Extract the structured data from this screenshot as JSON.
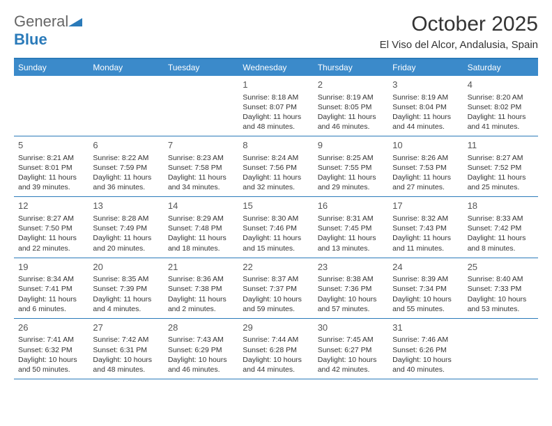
{
  "logo": {
    "text_gray": "General",
    "text_blue": "Blue"
  },
  "header": {
    "month_title": "October 2025",
    "location": "El Viso del Alcor, Andalusia, Spain"
  },
  "colors": {
    "header_bar": "#3b8aca",
    "border": "#2a7ab9",
    "text": "#333333"
  },
  "weekdays": [
    "Sunday",
    "Monday",
    "Tuesday",
    "Wednesday",
    "Thursday",
    "Friday",
    "Saturday"
  ],
  "weeks": [
    [
      {
        "num": "",
        "sunrise": "",
        "sunset": "",
        "daylight": ""
      },
      {
        "num": "",
        "sunrise": "",
        "sunset": "",
        "daylight": ""
      },
      {
        "num": "",
        "sunrise": "",
        "sunset": "",
        "daylight": ""
      },
      {
        "num": "1",
        "sunrise": "Sunrise: 8:18 AM",
        "sunset": "Sunset: 8:07 PM",
        "daylight": "Daylight: 11 hours and 48 minutes."
      },
      {
        "num": "2",
        "sunrise": "Sunrise: 8:19 AM",
        "sunset": "Sunset: 8:05 PM",
        "daylight": "Daylight: 11 hours and 46 minutes."
      },
      {
        "num": "3",
        "sunrise": "Sunrise: 8:19 AM",
        "sunset": "Sunset: 8:04 PM",
        "daylight": "Daylight: 11 hours and 44 minutes."
      },
      {
        "num": "4",
        "sunrise": "Sunrise: 8:20 AM",
        "sunset": "Sunset: 8:02 PM",
        "daylight": "Daylight: 11 hours and 41 minutes."
      }
    ],
    [
      {
        "num": "5",
        "sunrise": "Sunrise: 8:21 AM",
        "sunset": "Sunset: 8:01 PM",
        "daylight": "Daylight: 11 hours and 39 minutes."
      },
      {
        "num": "6",
        "sunrise": "Sunrise: 8:22 AM",
        "sunset": "Sunset: 7:59 PM",
        "daylight": "Daylight: 11 hours and 36 minutes."
      },
      {
        "num": "7",
        "sunrise": "Sunrise: 8:23 AM",
        "sunset": "Sunset: 7:58 PM",
        "daylight": "Daylight: 11 hours and 34 minutes."
      },
      {
        "num": "8",
        "sunrise": "Sunrise: 8:24 AM",
        "sunset": "Sunset: 7:56 PM",
        "daylight": "Daylight: 11 hours and 32 minutes."
      },
      {
        "num": "9",
        "sunrise": "Sunrise: 8:25 AM",
        "sunset": "Sunset: 7:55 PM",
        "daylight": "Daylight: 11 hours and 29 minutes."
      },
      {
        "num": "10",
        "sunrise": "Sunrise: 8:26 AM",
        "sunset": "Sunset: 7:53 PM",
        "daylight": "Daylight: 11 hours and 27 minutes."
      },
      {
        "num": "11",
        "sunrise": "Sunrise: 8:27 AM",
        "sunset": "Sunset: 7:52 PM",
        "daylight": "Daylight: 11 hours and 25 minutes."
      }
    ],
    [
      {
        "num": "12",
        "sunrise": "Sunrise: 8:27 AM",
        "sunset": "Sunset: 7:50 PM",
        "daylight": "Daylight: 11 hours and 22 minutes."
      },
      {
        "num": "13",
        "sunrise": "Sunrise: 8:28 AM",
        "sunset": "Sunset: 7:49 PM",
        "daylight": "Daylight: 11 hours and 20 minutes."
      },
      {
        "num": "14",
        "sunrise": "Sunrise: 8:29 AM",
        "sunset": "Sunset: 7:48 PM",
        "daylight": "Daylight: 11 hours and 18 minutes."
      },
      {
        "num": "15",
        "sunrise": "Sunrise: 8:30 AM",
        "sunset": "Sunset: 7:46 PM",
        "daylight": "Daylight: 11 hours and 15 minutes."
      },
      {
        "num": "16",
        "sunrise": "Sunrise: 8:31 AM",
        "sunset": "Sunset: 7:45 PM",
        "daylight": "Daylight: 11 hours and 13 minutes."
      },
      {
        "num": "17",
        "sunrise": "Sunrise: 8:32 AM",
        "sunset": "Sunset: 7:43 PM",
        "daylight": "Daylight: 11 hours and 11 minutes."
      },
      {
        "num": "18",
        "sunrise": "Sunrise: 8:33 AM",
        "sunset": "Sunset: 7:42 PM",
        "daylight": "Daylight: 11 hours and 8 minutes."
      }
    ],
    [
      {
        "num": "19",
        "sunrise": "Sunrise: 8:34 AM",
        "sunset": "Sunset: 7:41 PM",
        "daylight": "Daylight: 11 hours and 6 minutes."
      },
      {
        "num": "20",
        "sunrise": "Sunrise: 8:35 AM",
        "sunset": "Sunset: 7:39 PM",
        "daylight": "Daylight: 11 hours and 4 minutes."
      },
      {
        "num": "21",
        "sunrise": "Sunrise: 8:36 AM",
        "sunset": "Sunset: 7:38 PM",
        "daylight": "Daylight: 11 hours and 2 minutes."
      },
      {
        "num": "22",
        "sunrise": "Sunrise: 8:37 AM",
        "sunset": "Sunset: 7:37 PM",
        "daylight": "Daylight: 10 hours and 59 minutes."
      },
      {
        "num": "23",
        "sunrise": "Sunrise: 8:38 AM",
        "sunset": "Sunset: 7:36 PM",
        "daylight": "Daylight: 10 hours and 57 minutes."
      },
      {
        "num": "24",
        "sunrise": "Sunrise: 8:39 AM",
        "sunset": "Sunset: 7:34 PM",
        "daylight": "Daylight: 10 hours and 55 minutes."
      },
      {
        "num": "25",
        "sunrise": "Sunrise: 8:40 AM",
        "sunset": "Sunset: 7:33 PM",
        "daylight": "Daylight: 10 hours and 53 minutes."
      }
    ],
    [
      {
        "num": "26",
        "sunrise": "Sunrise: 7:41 AM",
        "sunset": "Sunset: 6:32 PM",
        "daylight": "Daylight: 10 hours and 50 minutes."
      },
      {
        "num": "27",
        "sunrise": "Sunrise: 7:42 AM",
        "sunset": "Sunset: 6:31 PM",
        "daylight": "Daylight: 10 hours and 48 minutes."
      },
      {
        "num": "28",
        "sunrise": "Sunrise: 7:43 AM",
        "sunset": "Sunset: 6:29 PM",
        "daylight": "Daylight: 10 hours and 46 minutes."
      },
      {
        "num": "29",
        "sunrise": "Sunrise: 7:44 AM",
        "sunset": "Sunset: 6:28 PM",
        "daylight": "Daylight: 10 hours and 44 minutes."
      },
      {
        "num": "30",
        "sunrise": "Sunrise: 7:45 AM",
        "sunset": "Sunset: 6:27 PM",
        "daylight": "Daylight: 10 hours and 42 minutes."
      },
      {
        "num": "31",
        "sunrise": "Sunrise: 7:46 AM",
        "sunset": "Sunset: 6:26 PM",
        "daylight": "Daylight: 10 hours and 40 minutes."
      },
      {
        "num": "",
        "sunrise": "",
        "sunset": "",
        "daylight": ""
      }
    ]
  ]
}
